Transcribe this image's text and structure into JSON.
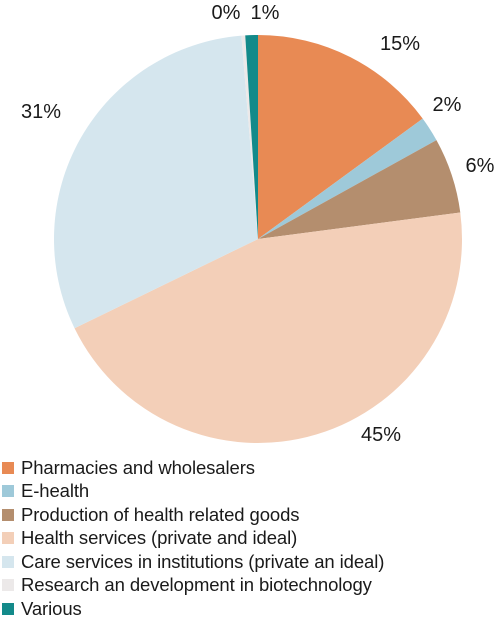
{
  "chart_data": {
    "type": "pie",
    "title": "",
    "slices": [
      {
        "label": "Pharmacies and wholesalers",
        "value": 15,
        "display": "15%",
        "color": "#e88a54"
      },
      {
        "label": "E-health",
        "value": 2,
        "display": "2%",
        "color": "#9ec9d9"
      },
      {
        "label": "Production of health related goods",
        "value": 6,
        "display": "6%",
        "color": "#b48e6e"
      },
      {
        "label": "Health services (private and ideal)",
        "value": 45,
        "display": "45%",
        "color": "#f3cfb8"
      },
      {
        "label": "Care services in institutions (private an ideal)",
        "value": 31,
        "display": "31%",
        "color": "#d5e6ee"
      },
      {
        "label": "Research an development in biotechnology",
        "value": 0.3,
        "display": "0%",
        "color": "#ece9e9"
      },
      {
        "label": "Various",
        "value": 1,
        "display": "1%",
        "color": "#138a8a"
      }
    ],
    "start_angle": "12 o'clock, clockwise",
    "legend_position": "bottom"
  }
}
